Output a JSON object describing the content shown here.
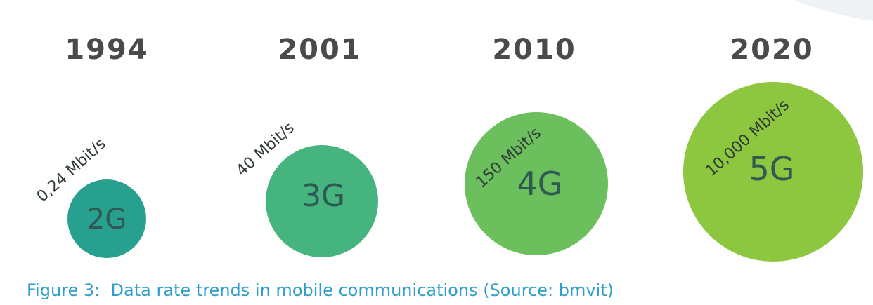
{
  "items": [
    {
      "year": "1994",
      "generation": "2G",
      "rate": "0,24 Mbit/s"
    },
    {
      "year": "2001",
      "generation": "3G",
      "rate": "40 Mbit/s"
    },
    {
      "year": "2010",
      "generation": "4G",
      "rate": "150 Mbit/s"
    },
    {
      "year": "2020",
      "generation": "5G",
      "rate": "10,000 Mbit/s"
    }
  ],
  "caption": "Figure 3:  Data rate trends in mobile communications (Source: bmvit)"
}
